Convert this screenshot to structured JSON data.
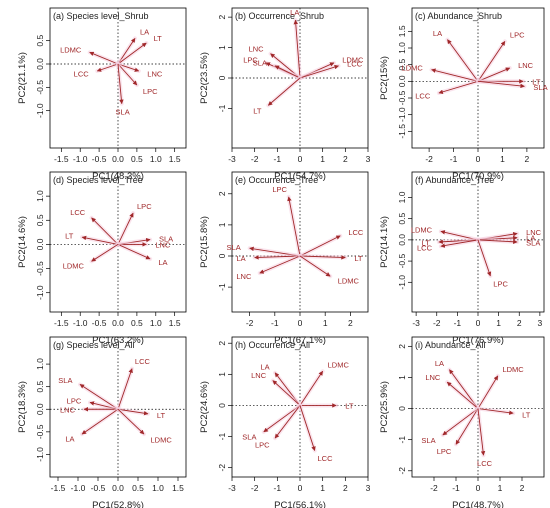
{
  "chart_data": [
    {
      "type": "biplot",
      "title": "(a) Species level_Shrub",
      "xlabel": "PC1(48.3%)",
      "ylabel": "PC2(21.1%)",
      "xlim": [
        -1.8,
        1.8
      ],
      "ylim": [
        -1.8,
        1.2
      ],
      "xticks": [
        -1.5,
        -1.0,
        -0.5,
        0.0,
        0.5,
        1.0,
        1.5
      ],
      "yticks": [
        -1.0,
        -0.5,
        0.0,
        0.5
      ],
      "vectors": [
        {
          "label": "LA",
          "x": 0.45,
          "y": 0.55
        },
        {
          "label": "LT",
          "x": 0.75,
          "y": 0.45
        },
        {
          "label": "LDMC",
          "x": -0.75,
          "y": 0.25
        },
        {
          "label": "LCC",
          "x": -0.55,
          "y": -0.15
        },
        {
          "label": "LNC",
          "x": 0.55,
          "y": -0.15
        },
        {
          "label": "LPC",
          "x": 0.5,
          "y": -0.45
        },
        {
          "label": "SLA",
          "x": 0.1,
          "y": -0.85
        }
      ]
    },
    {
      "type": "biplot",
      "title": "(b) Occurrence_Shrub",
      "xlabel": "PC1(54.7%)",
      "ylabel": "PC2(23.5%)",
      "xlim": [
        -3,
        3
      ],
      "ylim": [
        -2.3,
        2.3
      ],
      "xticks": [
        -3,
        -2,
        -1,
        0,
        1,
        2,
        3
      ],
      "yticks": [
        -1,
        0,
        1,
        2
      ],
      "vectors": [
        {
          "label": "LA",
          "x": -0.2,
          "y": 1.9
        },
        {
          "label": "LNC",
          "x": -1.3,
          "y": 0.8
        },
        {
          "label": "LPC",
          "x": -1.5,
          "y": 0.5
        },
        {
          "label": "SLA",
          "x": -1.1,
          "y": 0.4
        },
        {
          "label": "LDMC",
          "x": 1.5,
          "y": 0.5
        },
        {
          "label": "LCC",
          "x": 1.7,
          "y": 0.4
        },
        {
          "label": "LT",
          "x": -1.4,
          "y": -0.9
        }
      ]
    },
    {
      "type": "biplot",
      "title": "(c) Abundance_Shrub",
      "xlabel": "PC1(70.9%)",
      "ylabel": "PC2(15%)",
      "xlim": [
        -2.7,
        2.7
      ],
      "ylim": [
        -2.0,
        2.2
      ],
      "xticks": [
        -2,
        -1,
        0,
        1,
        2
      ],
      "yticks": [
        -1.5,
        -1.0,
        -0.5,
        0.0,
        0.5,
        1.0,
        1.5
      ],
      "vectors": [
        {
          "label": "LA",
          "x": -1.25,
          "y": 1.25
        },
        {
          "label": "LPC",
          "x": 1.1,
          "y": 1.2
        },
        {
          "label": "LDMC",
          "x": -1.9,
          "y": 0.35
        },
        {
          "label": "LNC",
          "x": 1.3,
          "y": 0.4
        },
        {
          "label": "LCC",
          "x": -1.6,
          "y": -0.35
        },
        {
          "label": "LT",
          "x": 1.85,
          "y": 0.0
        },
        {
          "label": "SLA",
          "x": 1.9,
          "y": -0.15
        }
      ]
    },
    {
      "type": "biplot",
      "title": "(d) Species level_Tree",
      "xlabel": "PC1(63.2%)",
      "ylabel": "PC2(14.6%)",
      "xlim": [
        -1.8,
        1.8
      ],
      "ylim": [
        -1.4,
        1.5
      ],
      "xticks": [
        -1.5,
        -1.0,
        -0.5,
        0.0,
        0.5,
        1.0,
        1.5
      ],
      "yticks": [
        -1.0,
        -0.5,
        0.0,
        0.5,
        1.0
      ],
      "vectors": [
        {
          "label": "LPC",
          "x": 0.4,
          "y": 0.65
        },
        {
          "label": "LCC",
          "x": -0.7,
          "y": 0.55
        },
        {
          "label": "LT",
          "x": -0.95,
          "y": 0.15
        },
        {
          "label": "SLA",
          "x": 0.85,
          "y": 0.1
        },
        {
          "label": "LNC",
          "x": 0.75,
          "y": 0.0
        },
        {
          "label": "LA",
          "x": 0.85,
          "y": -0.3
        },
        {
          "label": "LDMC",
          "x": -0.7,
          "y": -0.35
        }
      ]
    },
    {
      "type": "biplot",
      "title": "(e) Occurrence_Tree",
      "xlabel": "PC1(67.1%)",
      "ylabel": "PC2(15.8%)",
      "xlim": [
        -2.7,
        2.7
      ],
      "ylim": [
        -1.8,
        2.7
      ],
      "xticks": [
        -2,
        -1,
        0,
        1,
        2
      ],
      "yticks": [
        -1,
        0,
        1,
        2
      ],
      "vectors": [
        {
          "label": "LPC",
          "x": -0.45,
          "y": 1.9
        },
        {
          "label": "LCC",
          "x": 1.6,
          "y": 0.65
        },
        {
          "label": "SLA",
          "x": -2.0,
          "y": 0.25
        },
        {
          "label": "LA",
          "x": -1.8,
          "y": -0.05
        },
        {
          "label": "LT",
          "x": 1.8,
          "y": -0.05
        },
        {
          "label": "LNC",
          "x": -1.6,
          "y": -0.55
        },
        {
          "label": "LDMC",
          "x": 1.2,
          "y": -0.65
        }
      ]
    },
    {
      "type": "biplot",
      "title": "(f) Abundance_Tree",
      "xlabel": "PC1(76.9%)",
      "ylabel": "PC2(14.1%)",
      "xlim": [
        -3.2,
        3.2
      ],
      "ylim": [
        -1.7,
        1.6
      ],
      "xticks": [
        -3,
        -2,
        -1,
        0,
        1,
        2,
        3
      ],
      "yticks": [
        -1.0,
        -0.5,
        0.0,
        0.5,
        1.0
      ],
      "vectors": [
        {
          "label": "LDMC",
          "x": -1.8,
          "y": 0.2
        },
        {
          "label": "LNC",
          "x": 1.9,
          "y": 0.15
        },
        {
          "label": "LA",
          "x": 1.9,
          "y": 0.05
        },
        {
          "label": "LT",
          "x": -1.9,
          "y": -0.05
        },
        {
          "label": "SLA",
          "x": 1.9,
          "y": -0.05
        },
        {
          "label": "LCC",
          "x": -1.8,
          "y": -0.15
        },
        {
          "label": "LPC",
          "x": 0.6,
          "y": -0.85
        }
      ]
    },
    {
      "type": "biplot",
      "title": "(g) Species level_All",
      "xlabel": "PC1(52.8%)",
      "ylabel": "PC2(18.3%)",
      "xlim": [
        -1.7,
        1.7
      ],
      "ylim": [
        -1.5,
        1.6
      ],
      "xticks": [
        -1.5,
        -1.0,
        -0.5,
        0.0,
        0.5,
        1.0,
        1.5
      ],
      "yticks": [
        -1.0,
        -0.5,
        0.0,
        0.5,
        1.0
      ],
      "vectors": [
        {
          "label": "LCC",
          "x": 0.35,
          "y": 0.9
        },
        {
          "label": "SLA",
          "x": -0.95,
          "y": 0.55
        },
        {
          "label": "LPC",
          "x": -0.7,
          "y": 0.15
        },
        {
          "label": "LNC",
          "x": -0.85,
          "y": 0.0
        },
        {
          "label": "LT",
          "x": 0.75,
          "y": -0.1
        },
        {
          "label": "LA",
          "x": -0.9,
          "y": -0.55
        },
        {
          "label": "LDMC",
          "x": 0.65,
          "y": -0.55
        }
      ]
    },
    {
      "type": "biplot",
      "title": "(h) Occurrence_All",
      "xlabel": "PC1(56.1%)",
      "ylabel": "PC2(24.6%)",
      "xlim": [
        -3,
        3
      ],
      "ylim": [
        -2.3,
        2.2
      ],
      "xticks": [
        -3,
        -2,
        -1,
        0,
        1,
        2,
        3
      ],
      "yticks": [
        -2,
        -1,
        0,
        1,
        2
      ],
      "vectors": [
        {
          "label": "LA",
          "x": -1.1,
          "y": 1.05
        },
        {
          "label": "LDMC",
          "x": 1.0,
          "y": 1.1
        },
        {
          "label": "LNC",
          "x": -1.2,
          "y": 0.8
        },
        {
          "label": "LT",
          "x": 1.6,
          "y": 0.0
        },
        {
          "label": "SLA",
          "x": -1.6,
          "y": -0.85
        },
        {
          "label": "LPC",
          "x": -1.1,
          "y": -1.05
        },
        {
          "label": "LCC",
          "x": 0.65,
          "y": -1.45
        }
      ]
    },
    {
      "type": "biplot",
      "title": "(i) Abundance_All",
      "xlabel": "PC1(48.7%)",
      "ylabel": "PC2(25.9%)",
      "xlim": [
        -3.0,
        3.0
      ],
      "ylim": [
        -2.2,
        2.3
      ],
      "xticks": [
        -2,
        -1,
        0,
        1,
        2
      ],
      "yticks": [
        -2,
        -1,
        0,
        1,
        2
      ],
      "vectors": [
        {
          "label": "LA",
          "x": -1.3,
          "y": 1.25
        },
        {
          "label": "LDMC",
          "x": 0.9,
          "y": 1.05
        },
        {
          "label": "LNC",
          "x": -1.4,
          "y": 0.85
        },
        {
          "label": "LT",
          "x": 1.6,
          "y": -0.15
        },
        {
          "label": "SLA",
          "x": -1.6,
          "y": -0.85
        },
        {
          "label": "LPC",
          "x": -1.0,
          "y": -1.15
        },
        {
          "label": "LCC",
          "x": 0.25,
          "y": -1.5
        }
      ]
    }
  ],
  "colors": {
    "arrow": "#a0282a",
    "glow": "#f6cfe0",
    "frame": "#000000",
    "text": "#222222"
  }
}
